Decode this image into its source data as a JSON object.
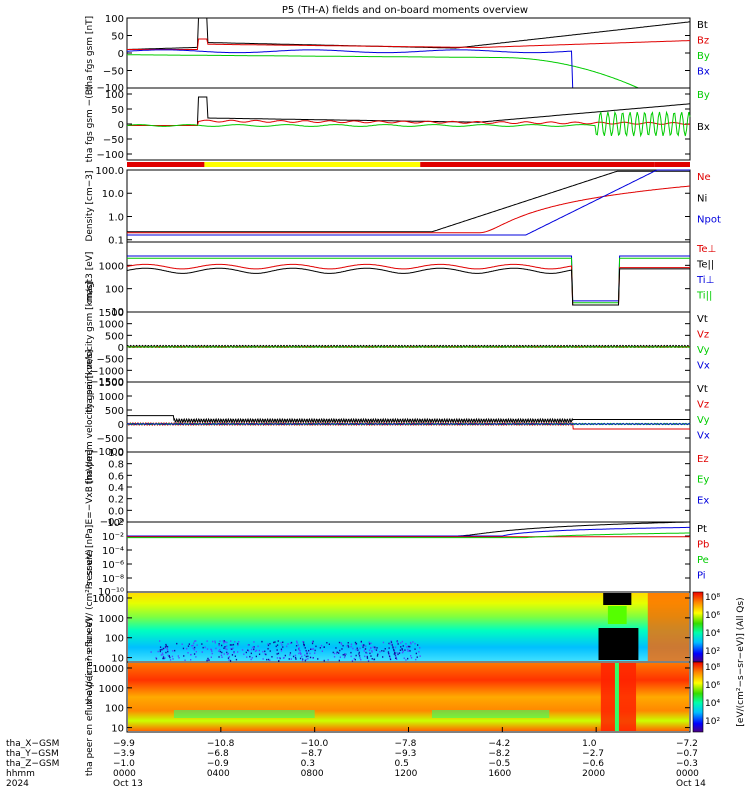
{
  "title": "P5 (TH-A) fields and on-board moments overview",
  "colors": {
    "black": "#000000",
    "red": "#e00000",
    "green": "#00cc00",
    "blue": "#0000dd",
    "yellow": "#ffff00",
    "pink": "#cc00cc"
  },
  "chart_data": [
    {
      "type": "line",
      "id": "fgs",
      "ylabel": "tha fgs gsm [nT]",
      "ylim": [
        -100,
        100
      ],
      "yticks": [
        "100",
        "50",
        "0",
        "−50",
        "−100"
      ],
      "yticks_values": [
        100,
        50,
        0,
        -50,
        -100
      ],
      "legend": [
        {
          "name": "Bt",
          "color": "#000000"
        },
        {
          "name": "Bz",
          "color": "#e00000"
        },
        {
          "name": "By",
          "color": "#00cc00"
        },
        {
          "name": "Bx",
          "color": "#0000dd"
        }
      ]
    },
    {
      "type": "line",
      "id": "fgs_dsl",
      "ylabel": "tha fgs gsm −(B)",
      "ylim": [
        -120,
        120
      ],
      "yticks": [
        "100",
        "50",
        "0",
        "−50",
        "−100"
      ],
      "yticks_values": [
        100,
        50,
        0,
        -50,
        -100
      ],
      "legend": [
        {
          "name": "By",
          "color": "#00cc00"
        },
        {
          "name": "Bx",
          "color": "#000000"
        }
      ]
    },
    {
      "type": "line",
      "id": "density",
      "ylabel": "Density [cm−3]",
      "scale": "log",
      "ylim": [
        0.08,
        100
      ],
      "yticks": [
        "100.0",
        "10.0",
        "1.0",
        "0.1"
      ],
      "yticks_values": [
        100,
        10,
        1,
        0.1
      ],
      "legend": [
        {
          "name": "Ne",
          "color": "#e00000"
        },
        {
          "name": "Ni",
          "color": "#000000"
        },
        {
          "name": "Npot",
          "color": "#0000dd"
        }
      ]
    },
    {
      "type": "line",
      "id": "temp",
      "ylabel": "magt3 [eV]",
      "scale": "log",
      "ylim": [
        10,
        10000
      ],
      "yticks": [
        "1000",
        "100",
        "10"
      ],
      "yticks_values": [
        1000,
        100,
        10
      ],
      "legend": [
        {
          "name": "Te⊥",
          "color": "#e00000"
        },
        {
          "name": "Te||",
          "color": "#000000"
        },
        {
          "name": "Ti⊥",
          "color": "#0000dd"
        },
        {
          "name": "Ti||",
          "color": "#00cc00"
        }
      ]
    },
    {
      "type": "line",
      "id": "peim",
      "ylabel": "tha peim velocity gsm [km/s]",
      "ylim": [
        -1500,
        1500
      ],
      "yticks": [
        "1500",
        "1000",
        "500",
        "0",
        "−500",
        "−1000",
        "−1500"
      ],
      "yticks_values": [
        1500,
        1000,
        500,
        0,
        -500,
        -1000,
        -1500
      ],
      "legend": [
        {
          "name": "Vt",
          "color": "#000000"
        },
        {
          "name": "Vz",
          "color": "#e00000"
        },
        {
          "name": "Vy",
          "color": "#00cc00"
        },
        {
          "name": "Vx",
          "color": "#0000dd"
        }
      ]
    },
    {
      "type": "line",
      "id": "peem",
      "ylabel": "tha peem velocity gsm [km/s]",
      "ylim": [
        -1000,
        1500
      ],
      "yticks": [
        "1500",
        "1000",
        "500",
        "0",
        "−500",
        "−1000"
      ],
      "yticks_values": [
        1500,
        1000,
        500,
        0,
        -500,
        -1000
      ],
      "legend": [
        {
          "name": "Vt",
          "color": "#000000"
        },
        {
          "name": "Vz",
          "color": "#e00000"
        },
        {
          "name": "Vy",
          "color": "#00cc00"
        },
        {
          "name": "Vx",
          "color": "#0000dd"
        }
      ]
    },
    {
      "type": "line",
      "id": "efield",
      "ylabel": "E=−VxB [mV/m]",
      "ylim": [
        -0.2,
        1.0
      ],
      "yticks": [
        "1.0",
        "0.8",
        "0.6",
        "0.4",
        "0.2",
        "0.0",
        "−0.2"
      ],
      "yticks_values": [
        1.0,
        0.8,
        0.6,
        0.4,
        0.2,
        0.0,
        -0.2
      ],
      "legend": [
        {
          "name": "Ez",
          "color": "#e00000"
        },
        {
          "name": "Ey",
          "color": "#00cc00"
        },
        {
          "name": "Ex",
          "color": "#0000dd"
        }
      ]
    },
    {
      "type": "line",
      "id": "pressure",
      "ylabel": "Pressure [nPa]",
      "scale": "log",
      "ylim": [
        1e-10,
        1
      ],
      "yticks": [
        "10⁰",
        "10⁻²",
        "10⁻⁴",
        "10⁻⁶",
        "10⁻⁸",
        "10⁻¹⁰"
      ],
      "yticks_values": [
        1,
        0.01,
        0.0001,
        1e-06,
        1e-08,
        1e-10
      ],
      "legend": [
        {
          "name": "Pt",
          "color": "#000000"
        },
        {
          "name": "Pb",
          "color": "#e00000"
        },
        {
          "name": "Pe",
          "color": "#00cc00"
        },
        {
          "name": "Pi",
          "color": "#0000dd"
        }
      ]
    },
    {
      "type": "heatmap",
      "id": "peir",
      "ylabel": "tha peir en eflux eV/ (cm²·s· sr·eV)",
      "scale": "log",
      "ylim": [
        6,
        20000
      ],
      "yticks": [
        "10000",
        "1000",
        "100",
        "10"
      ],
      "yticks_values": [
        10000,
        1000,
        100,
        10
      ],
      "colorbar_ticks": [
        "10⁸",
        "10⁶",
        "10⁴",
        "10²"
      ]
    },
    {
      "type": "heatmap",
      "id": "peer",
      "ylabel": "tha peer en eflux eV/ (cm²·s· sr·eV)",
      "scale": "log",
      "ylim": [
        6,
        20000
      ],
      "yticks": [
        "10000",
        "1000",
        "100",
        "10"
      ],
      "yticks_values": [
        10000,
        1000,
        100,
        10
      ],
      "colorbar_ticks": [
        "10⁸",
        "10⁶",
        "10⁴",
        "10²"
      ]
    }
  ],
  "colorbar_label": "[eV/(cm²−s−sr−eV)] (All Qs)",
  "x_axis": {
    "hours": [
      0,
      4,
      8,
      12,
      16,
      20,
      24
    ],
    "rows": [
      {
        "label": "tha_X−GSM",
        "values": [
          "−9.9",
          "−10.8",
          "−10.0",
          "−7.8",
          "−4.2",
          "1.0",
          "−7.2"
        ]
      },
      {
        "label": "tha_Y−GSM",
        "values": [
          "−3.9",
          "−6.8",
          "−8.7",
          "−9.3",
          "−8.2",
          "−2.7",
          "−0.7"
        ]
      },
      {
        "label": "tha_Z−GSM",
        "values": [
          "−1.0",
          "−0.9",
          "0.3",
          "0.5",
          "−0.5",
          "−0.6",
          "−0.3"
        ]
      },
      {
        "label": "hhmm",
        "values": [
          "0000",
          "0400",
          "0800",
          "1200",
          "1600",
          "2000",
          "0000"
        ]
      },
      {
        "label": "2024",
        "values": [
          "Oct 13",
          "",
          "",
          "",
          "",
          "",
          "Oct 14"
        ]
      }
    ]
  }
}
